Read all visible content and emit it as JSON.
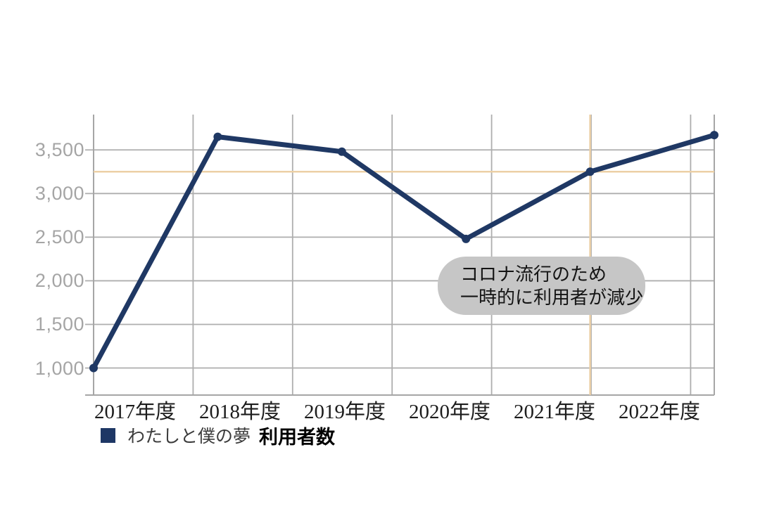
{
  "page": {
    "background": "#ffffff"
  },
  "chart_data": {
    "type": "line",
    "title": "",
    "categories": [
      "2017年度",
      "2018年度",
      "2019年度",
      "2020年度",
      "2021年度",
      "2022年度"
    ],
    "series": [
      {
        "name": "わたしと僕の夢",
        "values": [
          1000,
          3650,
          3480,
          2480,
          3250,
          3670
        ],
        "color": "#1f3864"
      }
    ],
    "ylabel": "利用者数",
    "yticks": [
      "1,000",
      "1,500",
      "2,000",
      "2,500",
      "3,000",
      "3,500"
    ],
    "ytick_values": [
      1000,
      1500,
      2000,
      2500,
      3000,
      3500
    ],
    "ylim": [
      690,
      3905
    ],
    "grid": true,
    "legend_position": "bottom-left",
    "crosshair": {
      "category": "2021年度",
      "category_index": 4,
      "value": 3250,
      "color": "#ecd0a6"
    },
    "annotation": {
      "lines": [
        "コロナ流行のため",
        "一時的に利用者が減少"
      ],
      "bg_color": "#c6c6c6"
    },
    "colors": {
      "line": "#1f3864",
      "point": "#1f3864",
      "grid": "#aeaeae",
      "axis_border": "#a6a6a6",
      "ytick_text": "#a5a5a5",
      "xtick_text": "#1c1c1c",
      "crosshair": "#ecd0a6",
      "annotation_bg": "#c6c6c6",
      "annotation_text": "#141414",
      "legend_marker": "#1e3765"
    }
  }
}
